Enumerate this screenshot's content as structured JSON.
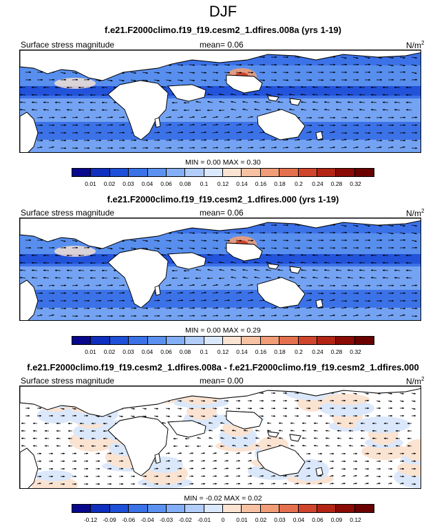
{
  "figure_title": "DJF",
  "panels": [
    {
      "title": "f.e21.F2000climo.f19_f19.cesm2_1.dfires.008a (yrs 1-19)",
      "left_label": "Surface stress magnitude",
      "mean_label": "mean=   0.06",
      "units": "N/m",
      "units_sup": "2",
      "minmax": "MIN =   0.00  MAX =   0.30"
    },
    {
      "title": "f.e21.F2000climo.f19_f19.cesm2_1.dfires.000 (yrs 1-19)",
      "left_label": "Surface stress magnitude",
      "mean_label": "mean=   0.06",
      "units": "N/m",
      "units_sup": "2",
      "minmax": "MIN =   0.00  MAX =   0.29"
    },
    {
      "title": "f.e21.F2000climo.f19_f19.cesm2_1.dfires.008a - f.e21.F2000climo.f19_f19.cesm2_1.dfires.000",
      "left_label": "Surface stress magnitude",
      "mean_label": "mean=   0.00",
      "units": "N/m",
      "units_sup": "2",
      "minmax": "MIN =  -0.02  MAX =   0.02"
    }
  ],
  "colorbars": [
    {
      "labels": [
        "0.01",
        "0.02",
        "0.03",
        "0.04",
        "0.06",
        "0.08",
        "0.1",
        "0.12",
        "0.14",
        "0.16",
        "0.18",
        "0.2",
        "0.24",
        "0.28",
        "0.32"
      ],
      "colors": [
        "#08088c",
        "#0f2fbf",
        "#1f50d8",
        "#3c72e8",
        "#5b92f0",
        "#82aff5",
        "#b2cdf8",
        "#dbe8fb",
        "#fbe3d2",
        "#f7c2a3",
        "#f19d78",
        "#e5704e",
        "#d0452d",
        "#b32414",
        "#8a0a04",
        "#6b0000"
      ]
    },
    {
      "labels": [
        "0.01",
        "0.02",
        "0.03",
        "0.04",
        "0.06",
        "0.08",
        "0.1",
        "0.12",
        "0.14",
        "0.16",
        "0.18",
        "0.2",
        "0.24",
        "0.28",
        "0.32"
      ],
      "colors": [
        "#08088c",
        "#0f2fbf",
        "#1f50d8",
        "#3c72e8",
        "#5b92f0",
        "#82aff5",
        "#b2cdf8",
        "#dbe8fb",
        "#fbe3d2",
        "#f7c2a3",
        "#f19d78",
        "#e5704e",
        "#d0452d",
        "#b32414",
        "#8a0a04",
        "#6b0000"
      ]
    },
    {
      "labels": [
        "-0.12",
        "-0.09",
        "-0.06",
        "-0.04",
        "-0.03",
        "-0.02",
        "-0.01",
        "0",
        "0.01",
        "0.02",
        "0.03",
        "0.04",
        "0.06",
        "0.09",
        "0.12"
      ],
      "colors": [
        "#08088c",
        "#0f2fbf",
        "#1f50d8",
        "#3c72e8",
        "#5b92f0",
        "#82aff5",
        "#b2cdf8",
        "#dbe8fb",
        "#fbe3d2",
        "#f7c2a3",
        "#f19d78",
        "#e5704e",
        "#d0452d",
        "#b32414",
        "#8a0a04",
        "#6b0000"
      ]
    }
  ],
  "chart_data": [
    {
      "type": "heatmap",
      "title": "f.e21.F2000climo.f19_f19.cesm2_1.dfires.008a (yrs 1-19)",
      "variable": "Surface stress magnitude",
      "units": "N/m2",
      "mean": 0.06,
      "min": 0.0,
      "max": 0.3
    },
    {
      "type": "heatmap",
      "title": "f.e21.F2000climo.f19_f19.cesm2_1.dfires.000 (yrs 1-19)",
      "variable": "Surface stress magnitude",
      "units": "N/m2",
      "mean": 0.06,
      "min": 0.0,
      "max": 0.29
    },
    {
      "type": "heatmap",
      "title": "f.e21.F2000climo.f19_f19.cesm2_1.dfires.008a - f.e21.F2000climo.f19_f19.cesm2_1.dfires.000",
      "variable": "Surface stress magnitude",
      "units": "N/m2",
      "mean": 0.0,
      "min": -0.02,
      "max": 0.02
    }
  ]
}
